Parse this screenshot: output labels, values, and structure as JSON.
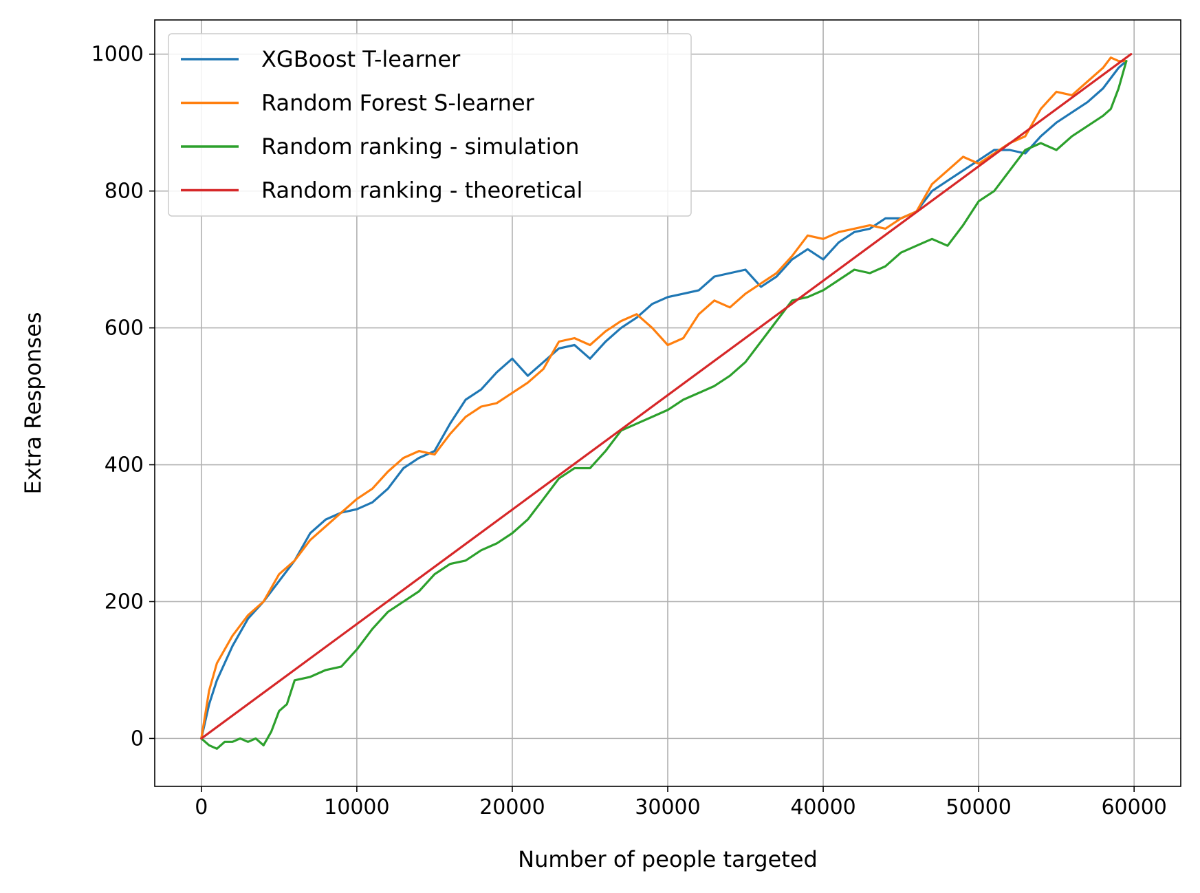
{
  "chart_data": {
    "type": "line",
    "title": "",
    "xlabel": "Number of people targeted",
    "ylabel": "Extra Responses",
    "xlim": [
      -3000,
      63000
    ],
    "ylim": [
      -70,
      1050
    ],
    "xticks": [
      0,
      10000,
      20000,
      30000,
      40000,
      50000,
      60000
    ],
    "xtick_labels": [
      "0",
      "10000",
      "20000",
      "30000",
      "40000",
      "50000",
      "60000"
    ],
    "yticks": [
      0,
      200,
      400,
      600,
      800,
      1000
    ],
    "ytick_labels": [
      "0",
      "200",
      "400",
      "600",
      "800",
      "1000"
    ],
    "grid": true,
    "legend_position": "top-left",
    "series": [
      {
        "name": "XGBoost T-learner",
        "color": "#1f77b4",
        "x": [
          0,
          500,
          1000,
          2000,
          3000,
          4000,
          5000,
          6000,
          7000,
          8000,
          9000,
          10000,
          11000,
          12000,
          13000,
          14000,
          15000,
          16000,
          17000,
          18000,
          19000,
          20000,
          21000,
          22000,
          23000,
          24000,
          25000,
          26000,
          27000,
          28000,
          29000,
          30000,
          31000,
          32000,
          33000,
          34000,
          35000,
          36000,
          37000,
          38000,
          39000,
          40000,
          41000,
          42000,
          43000,
          44000,
          45000,
          46000,
          47000,
          48000,
          49000,
          50000,
          51000,
          52000,
          53000,
          54000,
          55000,
          56000,
          57000,
          58000,
          58500,
          59000,
          59500
        ],
        "y": [
          0,
          50,
          85,
          135,
          175,
          200,
          230,
          260,
          300,
          320,
          330,
          335,
          345,
          365,
          395,
          410,
          420,
          460,
          495,
          510,
          535,
          555,
          530,
          550,
          570,
          575,
          555,
          580,
          600,
          615,
          635,
          645,
          650,
          655,
          675,
          680,
          685,
          660,
          675,
          700,
          715,
          700,
          725,
          740,
          745,
          760,
          760,
          770,
          800,
          815,
          830,
          845,
          860,
          860,
          855,
          880,
          900,
          915,
          930,
          950,
          965,
          980,
          990
        ]
      },
      {
        "name": "Random Forest S-learner",
        "color": "#ff7f0e",
        "x": [
          0,
          500,
          1000,
          2000,
          3000,
          4000,
          5000,
          6000,
          7000,
          8000,
          9000,
          10000,
          11000,
          12000,
          13000,
          14000,
          15000,
          16000,
          17000,
          18000,
          19000,
          20000,
          21000,
          22000,
          23000,
          24000,
          25000,
          26000,
          27000,
          28000,
          29000,
          30000,
          31000,
          32000,
          33000,
          34000,
          35000,
          36000,
          37000,
          38000,
          39000,
          40000,
          41000,
          42000,
          43000,
          44000,
          45000,
          46000,
          47000,
          48000,
          49000,
          50000,
          51000,
          52000,
          53000,
          54000,
          55000,
          56000,
          57000,
          58000,
          58500,
          59000,
          59500
        ],
        "y": [
          0,
          70,
          110,
          150,
          180,
          200,
          240,
          260,
          290,
          310,
          330,
          350,
          365,
          390,
          410,
          420,
          415,
          445,
          470,
          485,
          490,
          505,
          520,
          540,
          580,
          585,
          575,
          595,
          610,
          620,
          600,
          575,
          585,
          620,
          640,
          630,
          650,
          665,
          680,
          705,
          735,
          730,
          740,
          745,
          750,
          745,
          760,
          770,
          810,
          830,
          850,
          840,
          855,
          870,
          880,
          920,
          945,
          940,
          960,
          980,
          995,
          990,
          990
        ]
      },
      {
        "name": "Random ranking - simulation",
        "color": "#2ca02c",
        "x": [
          0,
          500,
          1000,
          1500,
          2000,
          2500,
          3000,
          3500,
          4000,
          4500,
          5000,
          5500,
          6000,
          7000,
          8000,
          9000,
          10000,
          11000,
          12000,
          13000,
          14000,
          15000,
          16000,
          17000,
          18000,
          19000,
          20000,
          21000,
          22000,
          23000,
          24000,
          25000,
          26000,
          27000,
          28000,
          29000,
          30000,
          31000,
          32000,
          33000,
          34000,
          35000,
          36000,
          37000,
          38000,
          39000,
          40000,
          41000,
          42000,
          43000,
          44000,
          45000,
          46000,
          47000,
          48000,
          49000,
          50000,
          51000,
          52000,
          53000,
          54000,
          55000,
          56000,
          57000,
          58000,
          58500,
          59000,
          59500
        ],
        "y": [
          0,
          -10,
          -15,
          -5,
          -5,
          0,
          -5,
          0,
          -10,
          10,
          40,
          50,
          85,
          90,
          100,
          105,
          130,
          160,
          185,
          200,
          215,
          240,
          255,
          260,
          275,
          285,
          300,
          320,
          350,
          380,
          395,
          395,
          420,
          450,
          460,
          470,
          480,
          495,
          505,
          515,
          530,
          550,
          580,
          610,
          640,
          645,
          655,
          670,
          685,
          680,
          690,
          710,
          720,
          730,
          720,
          750,
          785,
          800,
          830,
          860,
          870,
          860,
          880,
          895,
          910,
          920,
          950,
          990
        ]
      },
      {
        "name": "Random ranking - theoretical",
        "color": "#d62728",
        "x": [
          0,
          59800
        ],
        "y": [
          0,
          1000
        ]
      }
    ]
  }
}
